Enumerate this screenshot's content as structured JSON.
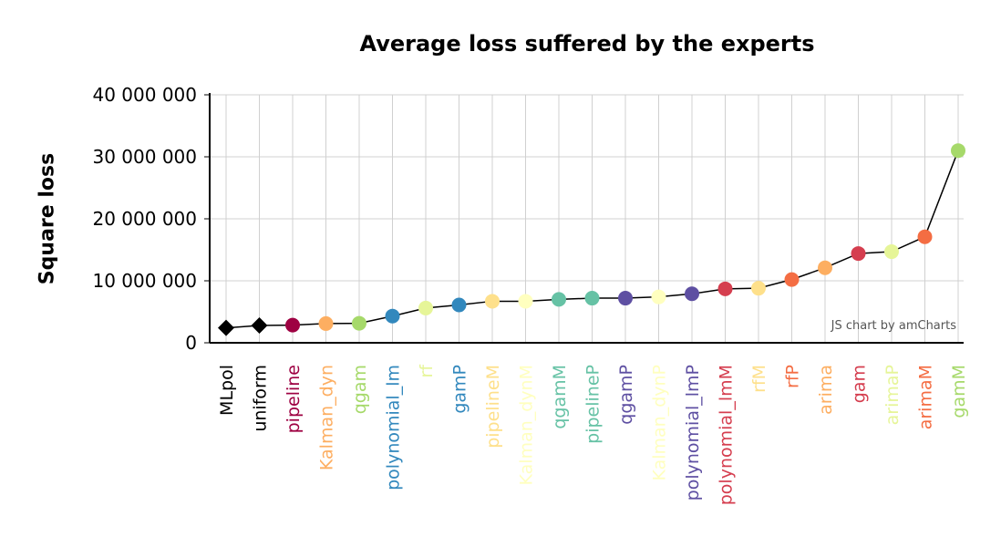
{
  "chart_data": {
    "type": "line",
    "title": "Average loss suffered by the experts",
    "xlabel": "",
    "ylabel": "Square loss",
    "ylim": [
      0,
      40000000
    ],
    "y_ticks": [
      0,
      10000000,
      20000000,
      30000000,
      40000000
    ],
    "y_tick_labels": [
      "0",
      "10 000 000",
      "20 000 000",
      "30 000 000",
      "40 000 000"
    ],
    "grid": true,
    "credit": "JS chart by amCharts",
    "points": [
      {
        "label": "MLpol",
        "value": 2400000,
        "color": "#000000",
        "marker": "diamond"
      },
      {
        "label": "uniform",
        "value": 2800000,
        "color": "#000000",
        "marker": "diamond"
      },
      {
        "label": "pipeline",
        "value": 2850000,
        "color": "#9e0142",
        "marker": "circle"
      },
      {
        "label": "Kalman_dyn",
        "value": 3100000,
        "color": "#fdae61",
        "marker": "circle"
      },
      {
        "label": "qgam",
        "value": 3150000,
        "color": "#a6d96a",
        "marker": "circle"
      },
      {
        "label": "polynomial_lm",
        "value": 4300000,
        "color": "#3288bd",
        "marker": "circle"
      },
      {
        "label": "rf",
        "value": 5600000,
        "color": "#e6f598",
        "marker": "circle"
      },
      {
        "label": "gamP",
        "value": 6100000,
        "color": "#3288bd",
        "marker": "circle"
      },
      {
        "label": "pipelineM",
        "value": 6700000,
        "color": "#fee08b",
        "marker": "circle"
      },
      {
        "label": "Kalman_dynM",
        "value": 6700000,
        "color": "#ffffbf",
        "marker": "circle"
      },
      {
        "label": "qgamM",
        "value": 7000000,
        "color": "#66c2a5",
        "marker": "circle"
      },
      {
        "label": "pipelineP",
        "value": 7200000,
        "color": "#66c2a5",
        "marker": "circle"
      },
      {
        "label": "qgamP",
        "value": 7200000,
        "color": "#5e4fa2",
        "marker": "circle"
      },
      {
        "label": "Kalman_dynP",
        "value": 7400000,
        "color": "#ffffbf",
        "marker": "circle"
      },
      {
        "label": "polynomial_lmP",
        "value": 7900000,
        "color": "#5e4fa2",
        "marker": "circle"
      },
      {
        "label": "polynomial_lmM",
        "value": 8700000,
        "color": "#d53e4f",
        "marker": "circle"
      },
      {
        "label": "rfM",
        "value": 8800000,
        "color": "#fee08b",
        "marker": "circle"
      },
      {
        "label": "rfP",
        "value": 10200000,
        "color": "#f46d43",
        "marker": "circle"
      },
      {
        "label": "arima",
        "value": 12100000,
        "color": "#fdae61",
        "marker": "circle"
      },
      {
        "label": "gam",
        "value": 14400000,
        "color": "#d53e4f",
        "marker": "circle"
      },
      {
        "label": "arimaP",
        "value": 14700000,
        "color": "#e6f598",
        "marker": "circle"
      },
      {
        "label": "arimaM",
        "value": 17100000,
        "color": "#f46d43",
        "marker": "circle"
      },
      {
        "label": "gamM",
        "value": 31000000,
        "color": "#a6d96a",
        "marker": "circle"
      }
    ]
  }
}
